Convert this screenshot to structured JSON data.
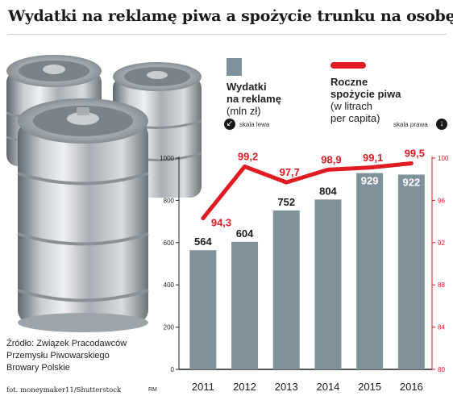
{
  "title": "Wydatki na reklamę piwa a spożycie trunku na osobę",
  "legend": {
    "bars_title_1": "Wydatki",
    "bars_title_2": "na reklamę",
    "bars_unit": "(mln zł)",
    "bars_scale": "skala lewa",
    "line_title_1": "Roczne",
    "line_title_2": "spożycie piwa",
    "line_unit_1": "(w litrach",
    "line_unit_2": "per capita)",
    "line_scale": "skala prawa"
  },
  "source": {
    "line1": "Źródło: Związek Pracodawców",
    "line2": "Przemysłu Piwowarskiego",
    "line3": "Browary Polskie"
  },
  "credit": "fot. moneymaker11/Shutterstock",
  "author": "RM",
  "colors": {
    "bars": "#7f929c",
    "line": "#e11b22",
    "right_axis": "#e11b22"
  },
  "chart_data": {
    "type": "bar",
    "categories": [
      "2011",
      "2012",
      "2013",
      "2014",
      "2015",
      "2016"
    ],
    "series": [
      {
        "name": "Wydatki na reklamę (mln zł)",
        "type": "bar",
        "axis": "left",
        "values": [
          564,
          604,
          752,
          804,
          929,
          922
        ],
        "labels": [
          "564",
          "604",
          "752",
          "804",
          "929",
          "922"
        ]
      },
      {
        "name": "Roczne spożycie piwa (w litrach per capita)",
        "type": "line",
        "axis": "right",
        "values": [
          94.3,
          99.2,
          97.7,
          98.9,
          99.1,
          99.5
        ],
        "labels": [
          "94,3",
          "99,2",
          "97,7",
          "98,9",
          "99,1",
          "99,5"
        ]
      }
    ],
    "y_left": {
      "ylim": [
        0,
        1000
      ],
      "ticks": [
        "0",
        "200",
        "400",
        "600",
        "800",
        "1000"
      ]
    },
    "y_right": {
      "ylim": [
        80,
        100
      ],
      "ticks": [
        "80",
        "84",
        "88",
        "92",
        "96",
        "100"
      ]
    },
    "grid": false
  }
}
